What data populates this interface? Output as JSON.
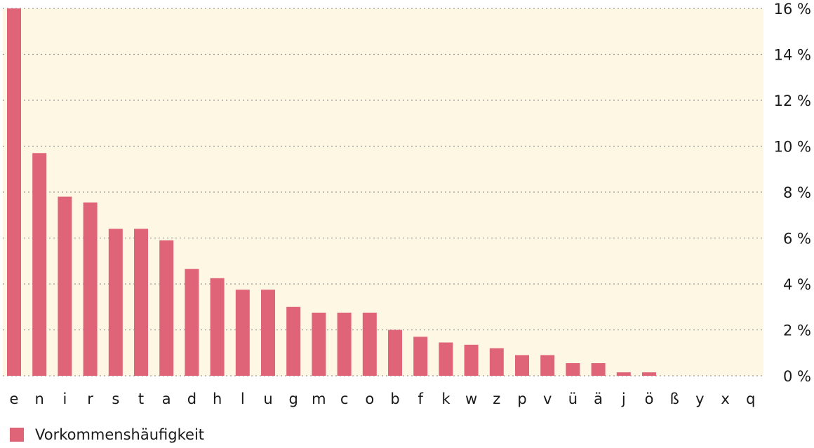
{
  "chart_data": {
    "type": "bar",
    "categories": [
      "e",
      "n",
      "i",
      "r",
      "s",
      "t",
      "a",
      "d",
      "h",
      "l",
      "u",
      "g",
      "m",
      "c",
      "o",
      "b",
      "f",
      "k",
      "w",
      "z",
      "p",
      "v",
      "ü",
      "ä",
      "j",
      "ö",
      "ß",
      "y",
      "x",
      "q"
    ],
    "series": [
      {
        "name": "Vorkommenshäufigkeit",
        "values": [
          16.0,
          9.7,
          7.8,
          7.55,
          6.4,
          6.4,
          5.9,
          4.65,
          4.25,
          3.75,
          3.75,
          3.0,
          2.75,
          2.75,
          2.75,
          2.0,
          1.7,
          1.45,
          1.35,
          1.2,
          0.9,
          0.9,
          0.55,
          0.55,
          0.15,
          0.15,
          0.0,
          0.0,
          0.0,
          0.0
        ]
      }
    ],
    "ylim": [
      0,
      16
    ],
    "yticks": [
      0,
      2,
      4,
      6,
      8,
      10,
      12,
      14,
      16
    ],
    "ytick_labels": [
      "0 %",
      "2 %",
      "4 %",
      "6 %",
      "8 %",
      "10 %",
      "12 %",
      "14 %",
      "16 %"
    ],
    "y_axis_side": "right",
    "grid": true,
    "legend_position": "bottom-left",
    "colors": {
      "bar": "#e06477",
      "plot_background": "#fdf7e4",
      "grid": "#9a9a9a"
    }
  }
}
